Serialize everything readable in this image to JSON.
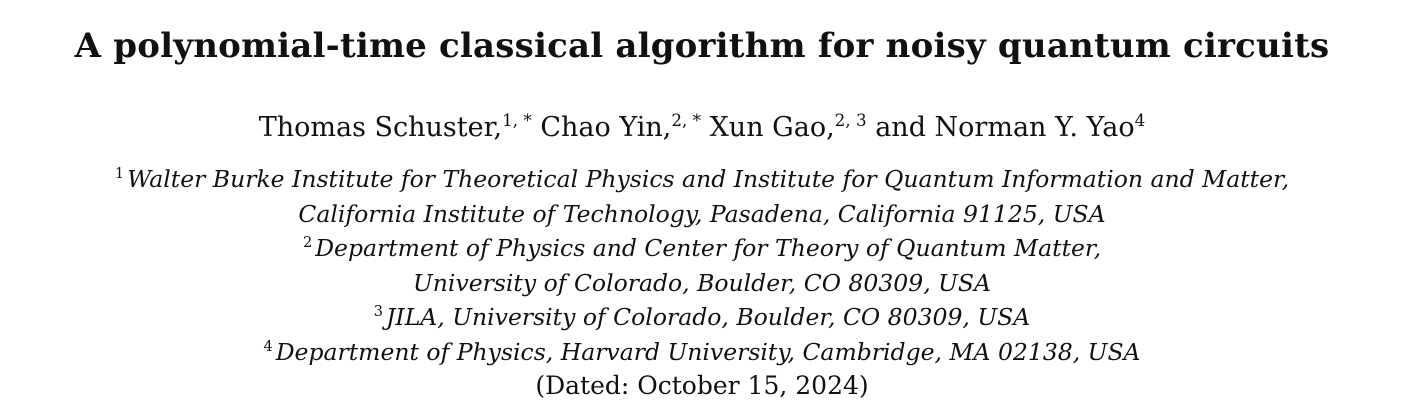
{
  "paper": {
    "title": "A polynomial-time classical algorithm for noisy quantum circuits",
    "authors": [
      {
        "name": "Thomas Schuster,",
        "marks": "1, *"
      },
      {
        "name": "Chao Yin,",
        "marks": "2, *"
      },
      {
        "name": "Xun Gao,",
        "marks": "2, 3"
      },
      {
        "name": "and Norman Y. Yao",
        "marks": "4"
      }
    ],
    "affiliations": [
      {
        "num": "1",
        "lines": [
          "Walter Burke Institute for Theoretical Physics and Institute for Quantum Information and Matter,",
          "California Institute of Technology, Pasadena, California 91125, USA"
        ]
      },
      {
        "num": "2",
        "lines": [
          "Department of Physics and Center for Theory of Quantum Matter,",
          "University of Colorado, Boulder, CO 80309, USA"
        ]
      },
      {
        "num": "3",
        "lines": [
          "JILA, University of Colorado, Boulder, CO 80309, USA"
        ]
      },
      {
        "num": "4",
        "lines": [
          "Department of Physics, Harvard University, Cambridge, MA 02138, USA"
        ]
      }
    ],
    "dated": "(Dated: October 15, 2024)"
  }
}
